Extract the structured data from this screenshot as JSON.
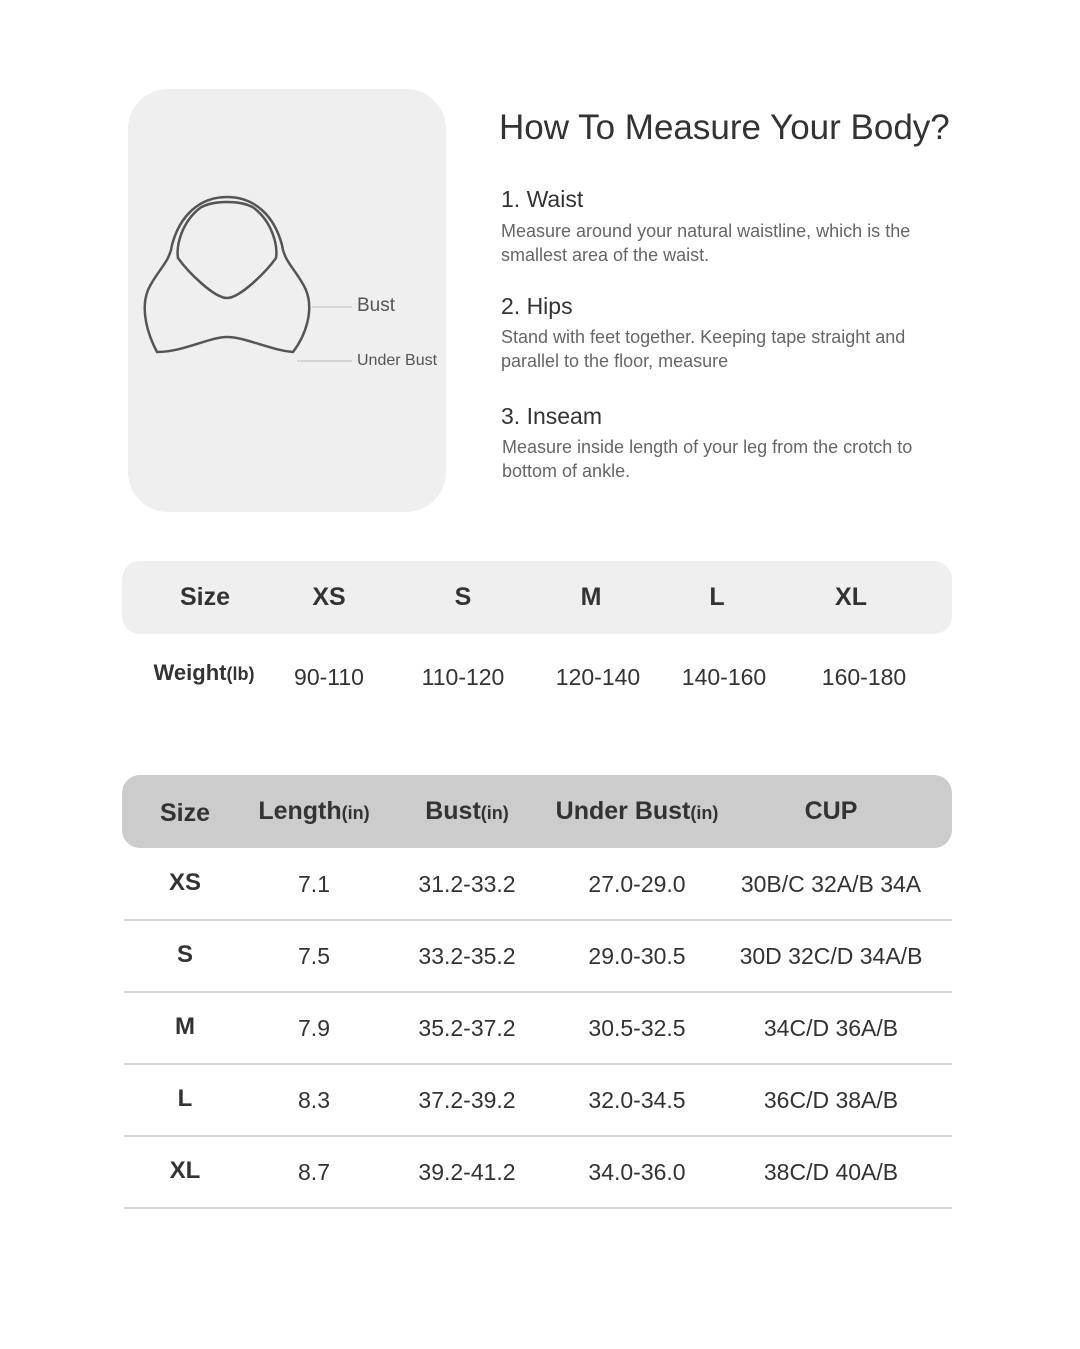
{
  "diagram": {
    "bust_label": "Bust",
    "under_bust_label": "Under Bust"
  },
  "guide": {
    "title": "How To Measure Your Body?",
    "steps": [
      {
        "title": "1. Waist",
        "desc": "Measure around your natural waistline, which is the smallest area of the waist."
      },
      {
        "title": "2. Hips",
        "desc": "Stand with feet together. Keeping tape straight and parallel to the floor, measure"
      },
      {
        "title": "3. Inseam",
        "desc": "Measure inside length of your leg from the crotch to bottom of ankle."
      }
    ]
  },
  "weight_table": {
    "header": [
      "Size",
      "XS",
      "S",
      "M",
      "L",
      "XL"
    ],
    "row_label": "Weight",
    "row_unit": "(lb)",
    "values": [
      "90-110",
      "110-120",
      "120-140",
      "140-160",
      "160-180"
    ]
  },
  "size_table": {
    "headers": [
      {
        "label": "Size",
        "unit": ""
      },
      {
        "label": "Length",
        "unit": "(in)"
      },
      {
        "label": "Bust",
        "unit": "(in)"
      },
      {
        "label": "Under Bust",
        "unit": "(in)"
      },
      {
        "label": "CUP",
        "unit": ""
      }
    ],
    "rows": [
      [
        "XS",
        "7.1",
        "31.2-33.2",
        "27.0-29.0",
        "30B/C 32A/B 34A"
      ],
      [
        "S",
        "7.5",
        "33.2-35.2",
        "29.0-30.5",
        "30D 32C/D 34A/B"
      ],
      [
        "M",
        "7.9",
        "35.2-37.2",
        "30.5-32.5",
        "34C/D 36A/B"
      ],
      [
        "L",
        "8.3",
        "37.2-39.2",
        "32.0-34.5",
        "36C/D 38A/B"
      ],
      [
        "XL",
        "8.7",
        "39.2-41.2",
        "34.0-36.0",
        "38C/D 40A/B"
      ]
    ]
  },
  "colors": {
    "card_bg": "#efefef",
    "weight_header_bg": "#efefef",
    "size_header_bg": "#cccccc"
  }
}
